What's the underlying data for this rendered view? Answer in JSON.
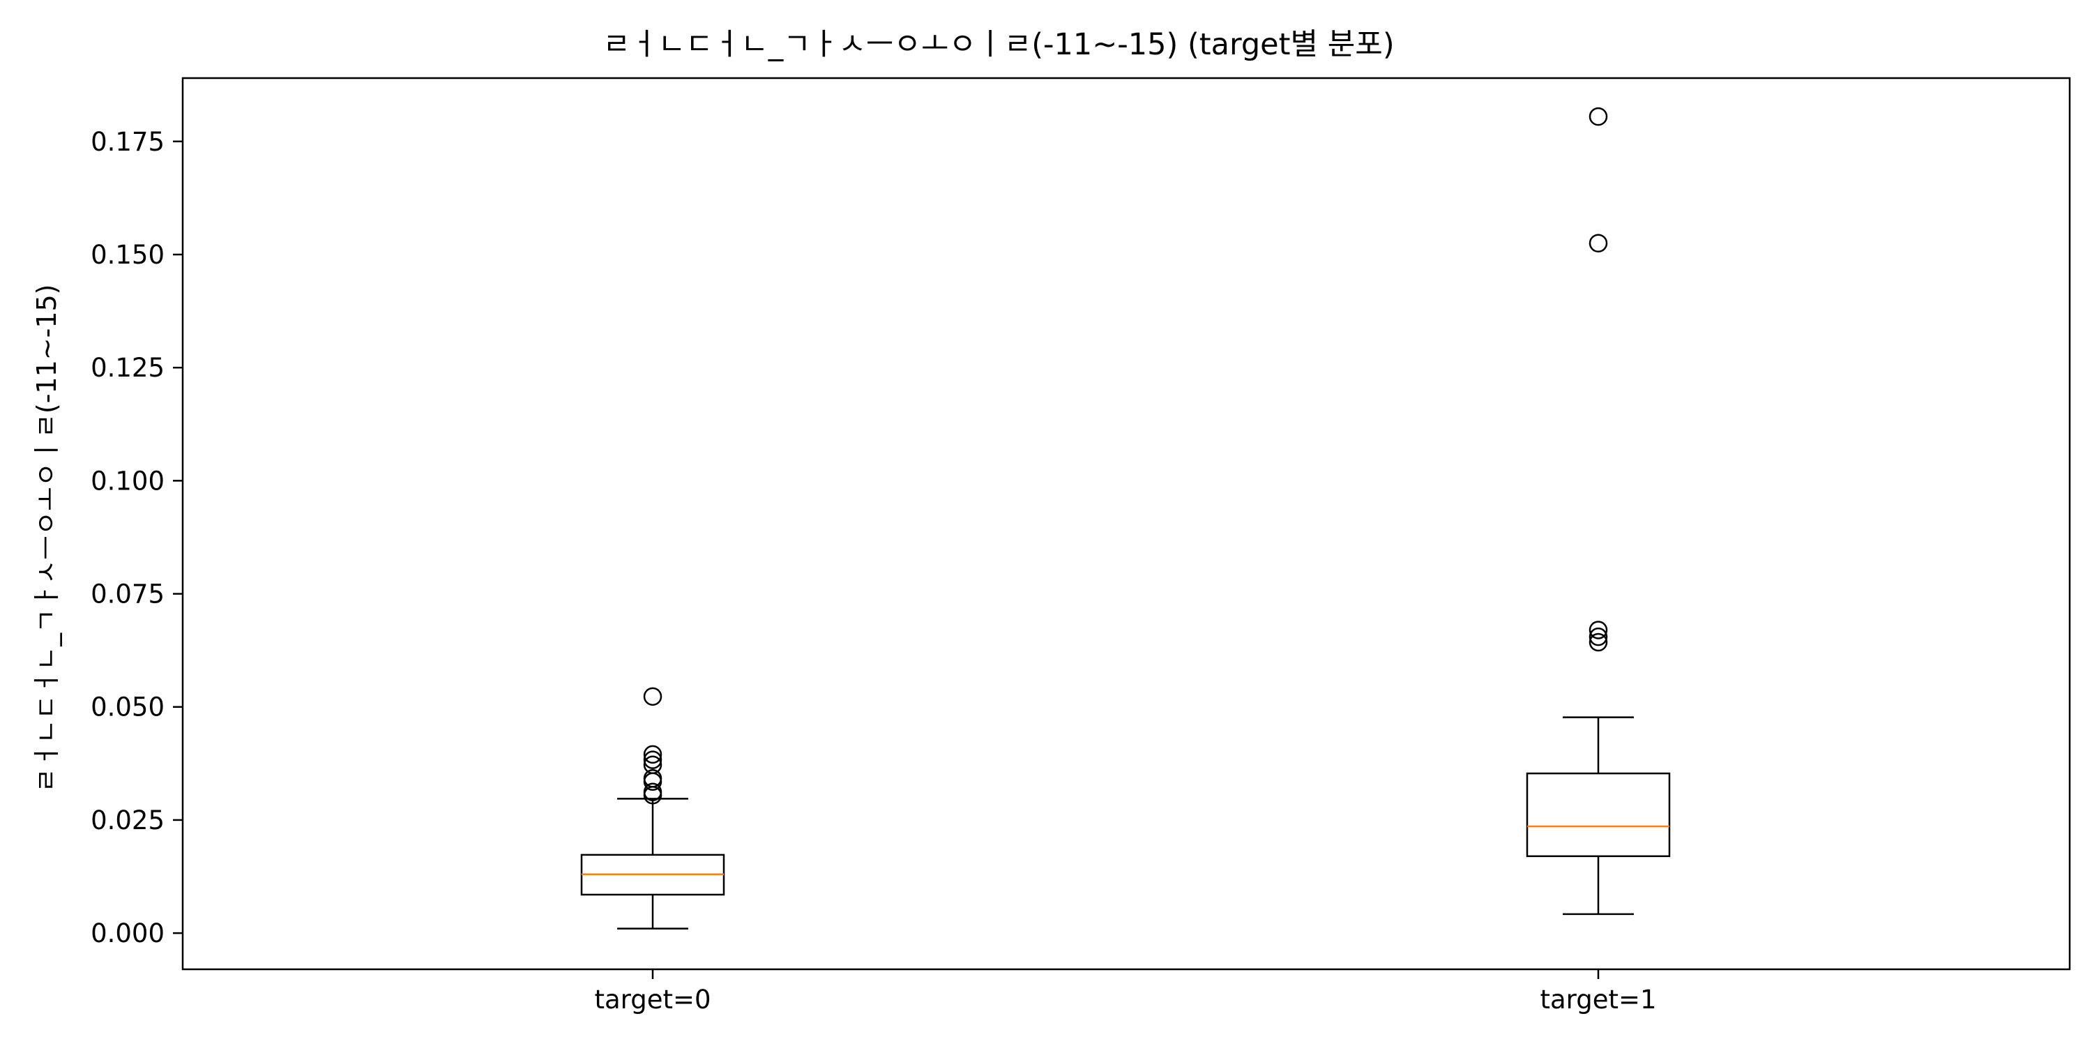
{
  "chart_data": {
    "type": "boxplot",
    "title": "ㄹㅓㄴㄷㅓㄴ_ㄱㅏㅅㅡㅇㅗㅇㅣㄹ(-11~-15) (target별 분포)",
    "xlabel": "",
    "ylabel": "ㄹㅓㄴㄷㅓㄴ_ㄱㅏㅅㅡㅇㅗㅇㅣㄹ(-11~-15)",
    "ylim": [
      -0.008,
      0.189
    ],
    "yticks": [
      0.0,
      0.025,
      0.05,
      0.075,
      0.1,
      0.125,
      0.15,
      0.175
    ],
    "ytick_labels": [
      "0.000",
      "0.025",
      "0.050",
      "0.075",
      "0.100",
      "0.125",
      "0.150",
      "0.175"
    ],
    "grid": false,
    "categories": [
      "target=0",
      "target=1"
    ],
    "boxes": [
      {
        "label": "target=0",
        "whisker_low": 0.001,
        "q1": 0.0085,
        "median": 0.013,
        "q3": 0.0173,
        "whisker_high": 0.0297,
        "outliers": [
          0.0305,
          0.0312,
          0.0335,
          0.0342,
          0.0372,
          0.0383,
          0.0395,
          0.0523
        ]
      },
      {
        "label": "target=1",
        "whisker_low": 0.0042,
        "q1": 0.017,
        "median": 0.0236,
        "q3": 0.0353,
        "whisker_high": 0.0477,
        "outliers": [
          0.0643,
          0.0655,
          0.067,
          0.1525,
          0.1805
        ]
      }
    ],
    "colors": {
      "box": "#000000",
      "median": "#ff7f0e",
      "outlier": "#000000"
    }
  }
}
